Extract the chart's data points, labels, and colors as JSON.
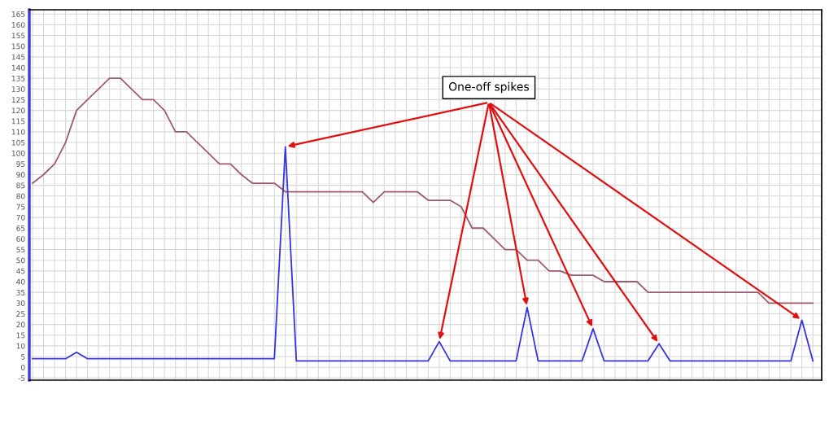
{
  "chart_data": {
    "type": "line",
    "annotations": [
      "One-off spikes"
    ],
    "categories": [
      null,
      null,
      null,
      null,
      null,
      null,
      null,
      null,
      null,
      null,
      null,
      null,
      null,
      null,
      null,
      null,
      null,
      null,
      null,
      null,
      null,
      null,
      null,
      null,
      null,
      null,
      null,
      null,
      null,
      null,
      null,
      null,
      null,
      null,
      null,
      null,
      null,
      null,
      null,
      null,
      null,
      null,
      null,
      null,
      null,
      null,
      null,
      null,
      null,
      null,
      null,
      null,
      null,
      null,
      null,
      null,
      null,
      null,
      null,
      null,
      null,
      null,
      null,
      null,
      null,
      null,
      null,
      null,
      null,
      null,
      null,
      null
    ],
    "ylim": [
      -6,
      167
    ],
    "yticks": [
      -5,
      0,
      5,
      10,
      15,
      20,
      25,
      30,
      35,
      40,
      45,
      50,
      55,
      60,
      65,
      70,
      75,
      80,
      85,
      90,
      95,
      100,
      105,
      110,
      115,
      120,
      125,
      130,
      135,
      140,
      145,
      150,
      155,
      160,
      165
    ],
    "grid": true,
    "marker": "none",
    "line_style": "solid",
    "series": [
      {
        "color": "#a05a6e",
        "values": [
          86,
          90,
          95,
          105,
          120,
          125,
          130,
          135,
          135,
          130,
          125,
          125,
          120,
          110,
          110,
          105,
          100,
          95,
          95,
          90,
          86,
          86,
          86,
          82,
          82,
          82,
          82,
          82,
          82,
          82,
          82,
          77,
          82,
          82,
          82,
          82,
          78,
          78,
          78,
          75,
          65,
          65,
          60,
          55,
          55,
          50,
          50,
          45,
          45,
          43,
          43,
          43,
          40,
          40,
          40,
          40,
          35,
          35,
          35,
          35,
          35,
          35,
          35,
          35,
          35,
          35,
          35,
          30,
          30,
          30,
          30,
          30
        ]
      },
      {
        "color": "#3535e0",
        "values": [
          4,
          4,
          4,
          4,
          7,
          4,
          4,
          4,
          4,
          4,
          4,
          4,
          4,
          4,
          4,
          4,
          4,
          4,
          4,
          4,
          4,
          4,
          4,
          103,
          3,
          3,
          3,
          3,
          3,
          3,
          3,
          3,
          3,
          3,
          3,
          3,
          3,
          12,
          3,
          3,
          3,
          3,
          3,
          3,
          3,
          28,
          3,
          3,
          3,
          3,
          3,
          18,
          3,
          3,
          3,
          3,
          3,
          11,
          3,
          3,
          3,
          3,
          3,
          3,
          3,
          3,
          3,
          3,
          3,
          3,
          22,
          3
        ]
      }
    ]
  }
}
